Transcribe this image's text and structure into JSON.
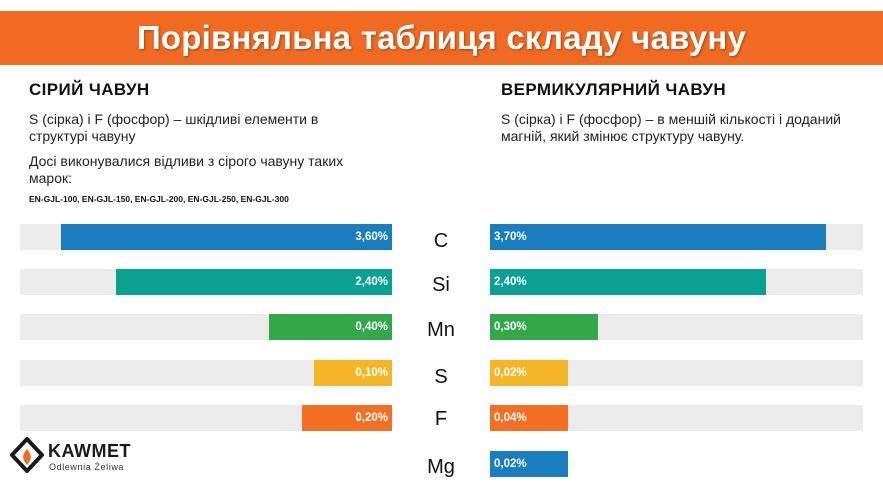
{
  "title": "Порівняльна таблиця складу чавуну",
  "left": {
    "heading": "СІРИЙ ЧАВУН",
    "para1": "S (сірка) і F (фосфор) – шкідливі елементи в структурі чавуну",
    "para2": "Досі виконувалися відливи з сірого чавуну таких марок:",
    "grades": "EN-GJL-100, EN-GJL-150, EN-GJL-200, EN-GJL-250, EN-GJL-300"
  },
  "right": {
    "heading": "ВЕРМИКУЛЯРНИЙ ЧАВУН",
    "para1": "S (сірка) і F (фосфор) – в меншій кількості і доданий магній, який змінює структуру чавуну."
  },
  "chart_data": [
    {
      "type": "bar",
      "orientation": "horizontal",
      "direction": "right-to-left",
      "categories": [
        "C",
        "Si",
        "Mn",
        "S",
        "F"
      ],
      "values": [
        3.6,
        2.4,
        0.4,
        0.1,
        0.2
      ],
      "labels": [
        "3,60%",
        "2,40%",
        "0,40%",
        "0,10%",
        "0,20%"
      ],
      "colors": [
        "#1a7dbf",
        "#0aa192",
        "#33a84a",
        "#f5b627",
        "#f36f24"
      ],
      "title": "СІРИЙ ЧАВУН"
    },
    {
      "type": "bar",
      "orientation": "horizontal",
      "direction": "left-to-right",
      "categories": [
        "C",
        "Si",
        "Mn",
        "S",
        "F",
        "Mg"
      ],
      "values": [
        3.7,
        2.4,
        0.3,
        0.02,
        0.04,
        0.02
      ],
      "labels": [
        "3,70%",
        "2,40%",
        "0,30%",
        "0,02%",
        "0,04%",
        "0,02%"
      ],
      "colors": [
        "#1a7dbf",
        "#0aa192",
        "#33a84a",
        "#f5b627",
        "#f36f24",
        "#1a7dbf"
      ],
      "title": "ВЕРМИКУЛЯРНИЙ ЧАВУН"
    }
  ],
  "logo": {
    "name": "KAWMET",
    "subtitle": "Odlewnia Żeliwa",
    "icon": "flame-icon"
  }
}
